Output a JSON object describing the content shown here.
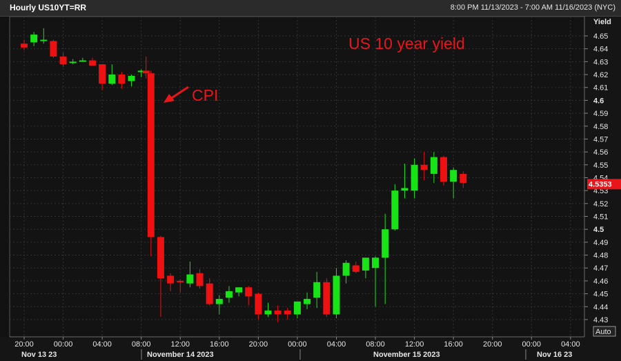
{
  "header": {
    "title": "Hourly US10YT=RR",
    "date_range": "8:00 PM 11/13/2023 - 7:00 AM 11/16/2023 (NYC)"
  },
  "axis": {
    "y_title": "Yield",
    "last_price_label": "4.5353",
    "auto_button": "Auto"
  },
  "annotations": {
    "main_title": "US 10 year yield",
    "event_label": "CPI"
  },
  "colors": {
    "up": "#17e317",
    "down": "#ee1111",
    "annotation": "#e8161b",
    "price_tag": "#e8161b"
  },
  "chart_data": {
    "type": "candlestick",
    "title": "US 10 year yield",
    "ylabel": "Yield",
    "ylim": [
      4.425,
      4.66
    ],
    "y_ticks": [
      4.65,
      4.64,
      4.63,
      4.62,
      4.61,
      4.6,
      4.59,
      4.58,
      4.57,
      4.56,
      4.55,
      4.54,
      4.53,
      4.52,
      4.51,
      4.5,
      4.49,
      4.48,
      4.47,
      4.46,
      4.45,
      4.44,
      4.43
    ],
    "y_ticks_bold": [
      4.6,
      4.5
    ],
    "time_ticks": [
      "20:00",
      "00:00",
      "04:00",
      "08:00",
      "12:00",
      "16:00",
      "20:00",
      "00:00",
      "04:00",
      "08:00",
      "12:00",
      "16:00",
      "20:00",
      "00:00",
      "04:00"
    ],
    "date_labels": [
      "Nov 13 23",
      "November 14 2023",
      "November 15 2023",
      "Nov 16 23"
    ],
    "grid": true,
    "last_value": 4.5353,
    "event": {
      "label": "CPI",
      "time": "Nov 14 08:30"
    },
    "candles": [
      {
        "time": "Nov 13 20:00",
        "open": 4.644,
        "high": 4.647,
        "low": 4.639,
        "close": 4.641
      },
      {
        "time": "Nov 13 21:00",
        "open": 4.645,
        "high": 4.653,
        "low": 4.642,
        "close": 4.651
      },
      {
        "time": "Nov 13 22:00",
        "open": 4.647,
        "high": 4.656,
        "low": 4.644,
        "close": 4.647
      },
      {
        "time": "Nov 13 23:00",
        "open": 4.646,
        "high": 4.647,
        "low": 4.633,
        "close": 4.634
      },
      {
        "time": "Nov 14 00:00",
        "open": 4.634,
        "high": 4.637,
        "low": 4.626,
        "close": 4.628
      },
      {
        "time": "Nov 14 01:00",
        "open": 4.63,
        "high": 4.632,
        "low": 4.628,
        "close": 4.63
      },
      {
        "time": "Nov 14 02:00",
        "open": 4.631,
        "high": 4.633,
        "low": 4.63,
        "close": 4.631
      },
      {
        "time": "Nov 14 03:00",
        "open": 4.631,
        "high": 4.633,
        "low": 4.627,
        "close": 4.627
      },
      {
        "time": "Nov 14 04:00",
        "open": 4.628,
        "high": 4.628,
        "low": 4.608,
        "close": 4.613
      },
      {
        "time": "Nov 14 05:00",
        "open": 4.613,
        "high": 4.628,
        "low": 4.612,
        "close": 4.62
      },
      {
        "time": "Nov 14 06:00",
        "open": 4.62,
        "high": 4.622,
        "low": 4.609,
        "close": 4.613
      },
      {
        "time": "Nov 14 07:00",
        "open": 4.615,
        "high": 4.62,
        "low": 4.611,
        "close": 4.619
      },
      {
        "time": "Nov 14 08:00",
        "open": 4.622,
        "high": 4.624,
        "low": 4.618,
        "close": 4.623
      },
      {
        "time": "Nov 14 08:30",
        "open": 4.623,
        "high": 4.634,
        "low": 4.617,
        "close": 4.621
      },
      {
        "time": "Nov 14 09:00",
        "open": 4.621,
        "high": 4.623,
        "low": 4.479,
        "close": 4.494
      },
      {
        "time": "Nov 14 10:00",
        "open": 4.494,
        "high": 4.495,
        "low": 4.432,
        "close": 4.462
      },
      {
        "time": "Nov 14 11:00",
        "open": 4.464,
        "high": 4.466,
        "low": 4.452,
        "close": 4.458
      },
      {
        "time": "Nov 14 12:00",
        "open": 4.46,
        "high": 4.461,
        "low": 4.451,
        "close": 4.459
      },
      {
        "time": "Nov 14 13:00",
        "open": 4.458,
        "high": 4.475,
        "low": 4.455,
        "close": 4.465
      },
      {
        "time": "Nov 14 14:00",
        "open": 4.466,
        "high": 4.469,
        "low": 4.454,
        "close": 4.456
      },
      {
        "time": "Nov 14 15:00",
        "open": 4.458,
        "high": 4.462,
        "low": 4.441,
        "close": 4.442
      },
      {
        "time": "Nov 14 16:00",
        "open": 4.442,
        "high": 4.449,
        "low": 4.434,
        "close": 4.446
      },
      {
        "time": "Nov 14 17:00",
        "open": 4.447,
        "high": 4.456,
        "low": 4.443,
        "close": 4.452
      },
      {
        "time": "Nov 14 18:00",
        "open": 4.451,
        "high": 4.455,
        "low": 4.448,
        "close": 4.455
      },
      {
        "time": "Nov 14 19:00",
        "open": 4.455,
        "high": 4.456,
        "low": 4.441,
        "close": 4.448
      },
      {
        "time": "Nov 14 20:00",
        "open": 4.45,
        "high": 4.451,
        "low": 4.43,
        "close": 4.434
      },
      {
        "time": "Nov 14 21:00",
        "open": 4.434,
        "high": 4.443,
        "low": 4.432,
        "close": 4.437
      },
      {
        "time": "Nov 14 22:00",
        "open": 4.437,
        "high": 4.441,
        "low": 4.428,
        "close": 4.434
      },
      {
        "time": "Nov 14 23:00",
        "open": 4.437,
        "high": 4.439,
        "low": 4.43,
        "close": 4.434
      },
      {
        "time": "Nov 15 00:00",
        "open": 4.434,
        "high": 4.442,
        "low": 4.431,
        "close": 4.444
      },
      {
        "time": "Nov 15 01:00",
        "open": 4.442,
        "high": 4.451,
        "low": 4.438,
        "close": 4.446
      },
      {
        "time": "Nov 15 02:00",
        "open": 4.447,
        "high": 4.467,
        "low": 4.439,
        "close": 4.459
      },
      {
        "time": "Nov 15 03:00",
        "open": 4.459,
        "high": 4.462,
        "low": 4.432,
        "close": 4.434
      },
      {
        "time": "Nov 15 04:00",
        "open": 4.434,
        "high": 4.47,
        "low": 4.431,
        "close": 4.464
      },
      {
        "time": "Nov 15 05:00",
        "open": 4.464,
        "high": 4.476,
        "low": 4.458,
        "close": 4.474
      },
      {
        "time": "Nov 15 06:00",
        "open": 4.472,
        "high": 4.475,
        "low": 4.466,
        "close": 4.467
      },
      {
        "time": "Nov 15 07:00",
        "open": 4.468,
        "high": 4.478,
        "low": 4.462,
        "close": 4.478
      },
      {
        "time": "Nov 15 08:00",
        "open": 4.47,
        "high": 4.479,
        "low": 4.44,
        "close": 4.478
      },
      {
        "time": "Nov 15 09:00",
        "open": 4.478,
        "high": 4.512,
        "low": 4.442,
        "close": 4.5
      },
      {
        "time": "Nov 15 10:00",
        "open": 4.5,
        "high": 4.535,
        "low": 4.499,
        "close": 4.53
      },
      {
        "time": "Nov 15 11:00",
        "open": 4.53,
        "high": 4.551,
        "low": 4.524,
        "close": 4.532
      },
      {
        "time": "Nov 15 12:00",
        "open": 4.53,
        "high": 4.555,
        "low": 4.524,
        "close": 4.55
      },
      {
        "time": "Nov 15 13:00",
        "open": 4.55,
        "high": 4.56,
        "low": 4.538,
        "close": 4.546
      },
      {
        "time": "Nov 15 14:00",
        "open": 4.543,
        "high": 4.56,
        "low": 4.536,
        "close": 4.556
      },
      {
        "time": "Nov 15 15:00",
        "open": 4.556,
        "high": 4.557,
        "low": 4.534,
        "close": 4.537
      },
      {
        "time": "Nov 15 16:00",
        "open": 4.537,
        "high": 4.548,
        "low": 4.524,
        "close": 4.546
      },
      {
        "time": "Nov 15 17:00",
        "open": 4.543,
        "high": 4.545,
        "low": 4.532,
        "close": 4.536
      }
    ]
  }
}
